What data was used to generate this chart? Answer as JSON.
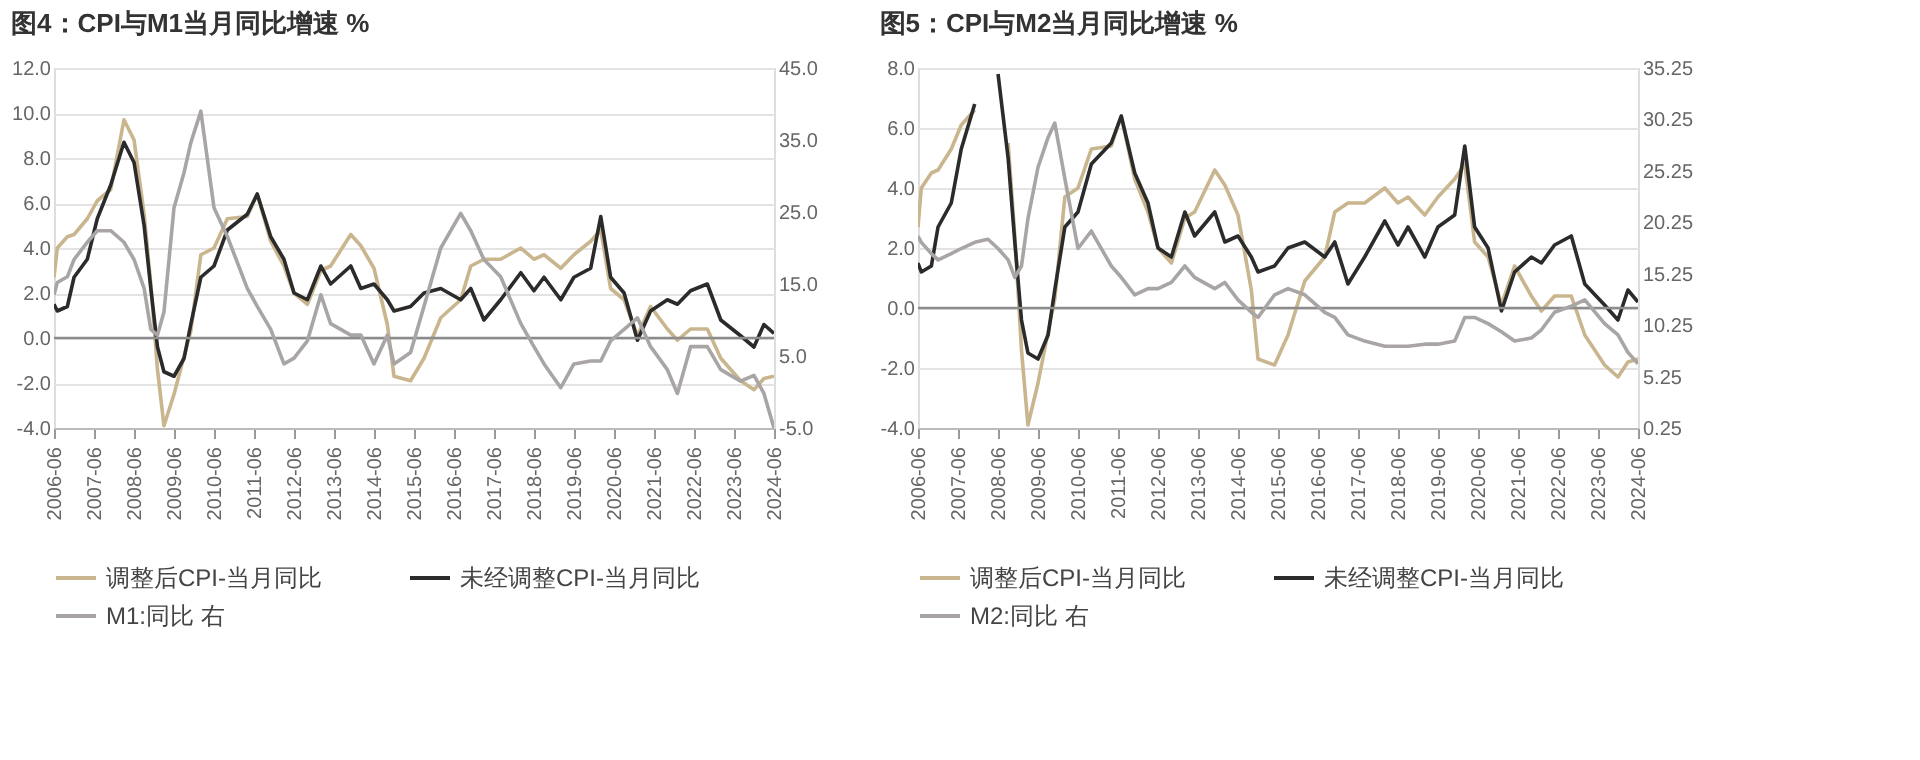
{
  "chart_data": [
    {
      "type": "line",
      "title": "图4：CPI与M1当月同比增速 %",
      "x": [
        "2006-06",
        "2006-07",
        "2006-10",
        "2006-12",
        "2007-04",
        "2007-07",
        "2007-11",
        "2008-03",
        "2008-06",
        "2008-09",
        "2008-11",
        "2009-01",
        "2009-03",
        "2009-06",
        "2009-09",
        "2009-11",
        "2010-02",
        "2010-06",
        "2010-10",
        "2011-04",
        "2011-07",
        "2011-11",
        "2012-03",
        "2012-06",
        "2012-10",
        "2013-02",
        "2013-05",
        "2013-11",
        "2014-02",
        "2014-06",
        "2014-10",
        "2014-12",
        "2015-05",
        "2015-09",
        "2016-02",
        "2016-08",
        "2016-11",
        "2017-03",
        "2017-08",
        "2018-02",
        "2018-06",
        "2018-09",
        "2019-02",
        "2019-06",
        "2019-11",
        "2020-02",
        "2020-05",
        "2020-09",
        "2021-01",
        "2021-05",
        "2021-10",
        "2022-01",
        "2022-05",
        "2022-10",
        "2023-02",
        "2023-08",
        "2023-12",
        "2024-03",
        "2024-06"
      ],
      "series": [
        {
          "name": "调整后CPI-当月同比",
          "color": "#c9b68f",
          "values": [
            2.7,
            4.0,
            4.5,
            4.6,
            5.3,
            6.1,
            6.6,
            9.7,
            8.8,
            5.5,
            2.4,
            -1.4,
            -3.9,
            -2.5,
            -0.8,
            0.3,
            3.7,
            4.0,
            5.3,
            5.4,
            6.4,
            4.3,
            3.2,
            2.0,
            1.5,
            3.0,
            3.2,
            4.6,
            4.1,
            3.1,
            0.6,
            -1.7,
            -1.9,
            -0.9,
            0.9,
            1.7,
            3.2,
            3.5,
            3.5,
            4.0,
            3.5,
            3.7,
            3.1,
            3.7,
            4.3,
            4.8,
            2.2,
            1.7,
            0.1,
            1.4,
            0.4,
            -0.1,
            0.4,
            0.4,
            -0.9,
            -1.9,
            -2.3,
            -1.8,
            -1.7
          ]
        },
        {
          "name": "未经调整CPI-当月同比",
          "color": "#2b2b2b",
          "values": [
            1.5,
            1.2,
            1.4,
            2.7,
            3.5,
            5.3,
            6.8,
            8.7,
            7.8,
            5.0,
            2.2,
            -0.4,
            -1.5,
            -1.7,
            -0.9,
            0.6,
            2.7,
            3.2,
            4.8,
            5.5,
            6.4,
            4.5,
            3.5,
            2.0,
            1.7,
            3.2,
            2.4,
            3.2,
            2.2,
            2.4,
            1.7,
            1.2,
            1.4,
            2.0,
            2.2,
            1.7,
            2.2,
            0.8,
            1.7,
            2.9,
            2.1,
            2.7,
            1.7,
            2.7,
            3.1,
            5.4,
            2.7,
            2.0,
            -0.1,
            1.2,
            1.7,
            1.5,
            2.1,
            2.4,
            0.8,
            0.1,
            -0.4,
            0.6,
            0.2
          ]
        },
        {
          "name": "M1:同比 右",
          "color": "#aaa5a5",
          "axis": "y2",
          "values": [
            13.5,
            15.2,
            16.0,
            18.4,
            20.8,
            22.4,
            22.4,
            20.8,
            18.4,
            14.4,
            8.7,
            7.9,
            11.1,
            25.6,
            30.5,
            34.6,
            39.0,
            25.6,
            21.6,
            14.4,
            11.9,
            8.7,
            3.9,
            4.7,
            7.1,
            13.5,
            9.5,
            7.9,
            7.9,
            3.9,
            7.9,
            3.9,
            5.5,
            11.9,
            20.0,
            24.8,
            22.4,
            18.4,
            16.0,
            9.5,
            6.3,
            3.9,
            0.6,
            3.9,
            4.3,
            4.3,
            7.1,
            8.7,
            10.3,
            6.3,
            3.1,
            -0.2,
            6.3,
            6.3,
            3.1,
            1.5,
            2.3,
            -0.2,
            -5.0
          ]
        }
      ],
      "xlim": [
        "2006-06",
        "2024-06"
      ],
      "xticks": [
        "2006-06",
        "2007-06",
        "2008-06",
        "2009-06",
        "2010-06",
        "2011-06",
        "2012-06",
        "2013-06",
        "2014-06",
        "2015-06",
        "2016-06",
        "2017-06",
        "2018-06",
        "2019-06",
        "2020-06",
        "2021-06",
        "2022-06",
        "2023-06",
        "2024-06"
      ],
      "ylim": [
        -4,
        12
      ],
      "yticks": [
        {
          "value": -4,
          "label": "-4.0"
        },
        {
          "value": -2,
          "label": "-2.0"
        },
        {
          "value": 0,
          "label": "0.0"
        },
        {
          "value": 2,
          "label": "2.0"
        },
        {
          "value": 4,
          "label": "4.0"
        },
        {
          "value": 6,
          "label": "6.0"
        },
        {
          "value": 8,
          "label": "8.0"
        },
        {
          "value": 10,
          "label": "10.0"
        },
        {
          "value": 12,
          "label": "12.0"
        }
      ],
      "y2lim": [
        -5,
        45
      ],
      "y2ticks": [
        {
          "value": -5,
          "label": "-5.0"
        },
        {
          "value": 5,
          "label": "5.0"
        },
        {
          "value": 15,
          "label": "15.0"
        },
        {
          "value": 25,
          "label": "25.0"
        },
        {
          "value": 35,
          "label": "35.0"
        },
        {
          "value": 45,
          "label": "45.0"
        }
      ],
      "grid": "y",
      "legend": "bottom",
      "ref_lines": [
        {
          "axis": "y",
          "value": 0,
          "color": "#8c8c8c"
        }
      ]
    },
    {
      "type": "line",
      "title": "图5：CPI与M2当月同比增速 %",
      "x": [
        "2006-06",
        "2006-07",
        "2006-10",
        "2006-12",
        "2007-04",
        "2007-07",
        "2007-11",
        "2008-03",
        "2008-06",
        "2008-09",
        "2008-11",
        "2009-01",
        "2009-03",
        "2009-06",
        "2009-09",
        "2009-11",
        "2010-02",
        "2010-06",
        "2010-10",
        "2011-04",
        "2011-07",
        "2011-11",
        "2012-03",
        "2012-06",
        "2012-10",
        "2013-02",
        "2013-05",
        "2013-11",
        "2014-02",
        "2014-06",
        "2014-10",
        "2014-12",
        "2015-05",
        "2015-09",
        "2016-02",
        "2016-08",
        "2016-11",
        "2017-03",
        "2017-08",
        "2018-02",
        "2018-06",
        "2018-09",
        "2019-02",
        "2019-06",
        "2019-11",
        "2020-02",
        "2020-05",
        "2020-09",
        "2021-01",
        "2021-05",
        "2021-10",
        "2022-01",
        "2022-05",
        "2022-10",
        "2023-02",
        "2023-08",
        "2023-12",
        "2024-03",
        "2024-06"
      ],
      "series": [
        {
          "name": "调整后CPI-当月同比",
          "color": "#c9b68f",
          "values": [
            2.7,
            4.0,
            4.5,
            4.6,
            5.3,
            6.1,
            6.6,
            null,
            null,
            5.5,
            2.4,
            -1.4,
            -3.9,
            -2.5,
            -0.8,
            0.3,
            3.7,
            4.0,
            5.3,
            5.4,
            6.4,
            4.3,
            3.2,
            2.0,
            1.5,
            3.0,
            3.2,
            4.6,
            4.1,
            3.1,
            0.6,
            -1.7,
            -1.9,
            -0.9,
            0.9,
            1.7,
            3.2,
            3.5,
            3.5,
            4.0,
            3.5,
            3.7,
            3.1,
            3.7,
            4.3,
            4.8,
            2.2,
            1.7,
            0.1,
            1.4,
            0.4,
            -0.1,
            0.4,
            0.4,
            -0.9,
            -1.9,
            -2.3,
            -1.8,
            -1.7
          ]
        },
        {
          "name": "未经调整CPI-当月同比",
          "color": "#2b2b2b",
          "values": [
            1.5,
            1.2,
            1.4,
            2.7,
            3.5,
            5.3,
            6.8,
            null,
            7.8,
            5.0,
            2.2,
            -0.4,
            -1.5,
            -1.7,
            -0.9,
            0.6,
            2.7,
            3.2,
            4.8,
            5.5,
            6.4,
            4.5,
            3.5,
            2.0,
            1.7,
            3.2,
            2.4,
            3.2,
            2.2,
            2.4,
            1.7,
            1.2,
            1.4,
            2.0,
            2.2,
            1.7,
            2.2,
            0.8,
            1.7,
            2.9,
            2.1,
            2.7,
            1.7,
            2.7,
            3.1,
            5.4,
            2.7,
            2.0,
            -0.1,
            1.2,
            1.7,
            1.5,
            2.1,
            2.4,
            0.8,
            0.1,
            -0.4,
            0.6,
            0.2
          ]
        },
        {
          "name": "M2:同比 右",
          "color": "#aaa5a5",
          "axis": "y2",
          "values": [
            18.9,
            18.3,
            17.2,
            16.6,
            17.2,
            17.7,
            18.3,
            18.6,
            17.7,
            16.6,
            14.9,
            16.0,
            20.6,
            25.6,
            28.5,
            29.9,
            24.5,
            17.7,
            19.4,
            16.0,
            14.9,
            13.2,
            13.8,
            13.8,
            14.4,
            16.0,
            14.9,
            13.8,
            14.4,
            12.7,
            11.5,
            11.0,
            13.2,
            13.8,
            13.2,
            11.5,
            11.0,
            9.3,
            8.7,
            8.2,
            8.2,
            8.2,
            8.4,
            8.4,
            8.7,
            11.0,
            11.0,
            10.4,
            9.6,
            8.7,
            9.0,
            9.8,
            11.5,
            12.1,
            12.7,
            10.4,
            9.3,
            7.6,
            6.5
          ]
        }
      ],
      "xlim": [
        "2006-06",
        "2024-06"
      ],
      "xticks": [
        "2006-06",
        "2007-06",
        "2008-06",
        "2009-06",
        "2010-06",
        "2011-06",
        "2012-06",
        "2013-06",
        "2014-06",
        "2015-06",
        "2016-06",
        "2017-06",
        "2018-06",
        "2019-06",
        "2020-06",
        "2021-06",
        "2022-06",
        "2023-06",
        "2024-06"
      ],
      "ylim": [
        -4,
        8
      ],
      "yticks": [
        {
          "value": -4,
          "label": "-4.0"
        },
        {
          "value": -2,
          "label": "-2.0"
        },
        {
          "value": 0,
          "label": "0.0"
        },
        {
          "value": 2,
          "label": "2.0"
        },
        {
          "value": 4,
          "label": "4.0"
        },
        {
          "value": 6,
          "label": "6.0"
        },
        {
          "value": 8,
          "label": "8.0"
        }
      ],
      "y2lim": [
        0.25,
        35.25
      ],
      "y2ticks": [
        0.25,
        5.25,
        10.25,
        15.25,
        20.25,
        25.25,
        30.25,
        35.25
      ],
      "grid": "y",
      "legend": "bottom",
      "ref_lines": [
        {
          "axis": "y",
          "value": 0,
          "color": "#8c8c8c"
        }
      ]
    }
  ]
}
